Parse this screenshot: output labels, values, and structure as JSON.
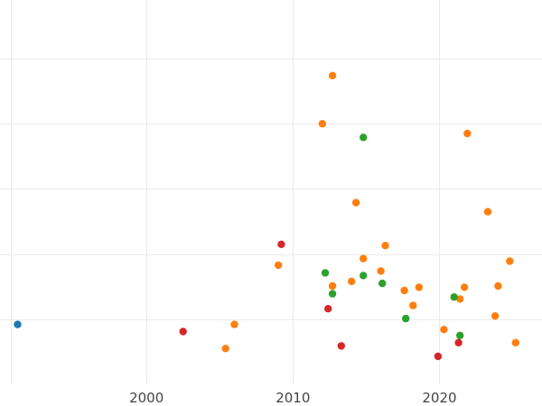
{
  "chart_data": {
    "type": "scatter",
    "title": "",
    "xlabel": "",
    "ylabel": "",
    "grid": true,
    "legend": "none",
    "xlim": [
      1990.0,
      2027.0
    ],
    "ylim": [
      -1.0,
      4.9
    ],
    "x_ticks": [
      2000,
      2010,
      2020
    ],
    "x_tick_labels": [
      "2000",
      "2010",
      "2020"
    ],
    "y_ticks": [
      0,
      1,
      2,
      3,
      4
    ],
    "series": [
      {
        "color": "#1f77b4",
        "points": [
          [
            1991.2,
            -0.08
          ]
        ]
      },
      {
        "color": "#ff7f0e",
        "points": [
          [
            2005.4,
            -0.45
          ],
          [
            2006.0,
            -0.08
          ],
          [
            2009.0,
            0.83
          ],
          [
            2012.0,
            3.0
          ],
          [
            2012.7,
            3.74
          ],
          [
            2012.7,
            0.51
          ],
          [
            2014.0,
            0.58
          ],
          [
            2014.3,
            1.79
          ],
          [
            2014.8,
            0.93
          ],
          [
            2016.0,
            0.74
          ],
          [
            2016.3,
            1.13
          ],
          [
            2017.6,
            0.44
          ],
          [
            2018.2,
            0.21
          ],
          [
            2018.6,
            0.49
          ],
          [
            2020.3,
            -0.16
          ],
          [
            2021.4,
            0.31
          ],
          [
            2021.7,
            0.49
          ],
          [
            2021.9,
            2.85
          ],
          [
            2023.3,
            1.65
          ],
          [
            2023.8,
            0.05
          ],
          [
            2024.0,
            0.51
          ],
          [
            2024.8,
            0.89
          ],
          [
            2025.2,
            -0.36
          ]
        ]
      },
      {
        "color": "#2ca02c",
        "points": [
          [
            2012.2,
            0.71
          ],
          [
            2012.7,
            0.39
          ],
          [
            2014.8,
            2.79
          ],
          [
            2014.8,
            0.67
          ],
          [
            2016.1,
            0.55
          ],
          [
            2017.7,
            0.01
          ],
          [
            2021.0,
            0.34
          ],
          [
            2021.4,
            -0.25
          ]
        ]
      },
      {
        "color": "#d62728",
        "points": [
          [
            2002.5,
            -0.19
          ],
          [
            2009.2,
            1.15
          ],
          [
            2012.4,
            0.16
          ],
          [
            2013.3,
            -0.41
          ],
          [
            2019.9,
            -0.57
          ],
          [
            2021.3,
            -0.36
          ]
        ]
      }
    ]
  }
}
